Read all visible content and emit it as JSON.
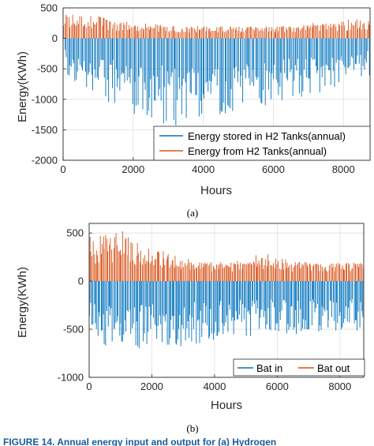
{
  "colors": {
    "stored": "#0072BD",
    "released": "#D95319",
    "axis": "#262626",
    "grid": "#dfdfdf"
  },
  "caption": "FIGURE 14. Annual energy input and output for (a) Hydrogen",
  "chart_data": [
    {
      "type": "bar",
      "sublabel": "(a)",
      "xlabel": "Hours",
      "ylabel": "Energy(KWh)",
      "xlim": [
        0,
        8760
      ],
      "ylim": [
        -2000,
        500
      ],
      "xticks": [
        0,
        2000,
        4000,
        6000,
        8000
      ],
      "yticks": [
        500,
        0,
        -500,
        -1000,
        -1500,
        -2000
      ],
      "grid": true,
      "legend_position": "bottom-right",
      "series": [
        {
          "name": "Energy stored in H2 Tanks(annual)",
          "color": "#0072BD",
          "hours": [
            0,
            500,
            1000,
            1500,
            2000,
            2500,
            3000,
            3500,
            4000,
            4500,
            5000,
            5500,
            6000,
            6500,
            7000,
            7500,
            8000,
            8500,
            8760
          ],
          "min_values": [
            -550,
            -800,
            -1000,
            -1150,
            -1250,
            -1350,
            -1450,
            -1420,
            -1350,
            -1250,
            -1200,
            -1150,
            -1100,
            -1000,
            -950,
            -900,
            -800,
            -700,
            -650
          ],
          "typical_values": [
            -300,
            -500,
            -600,
            -700,
            -800,
            -850,
            -900,
            -900,
            -850,
            -800,
            -750,
            -720,
            -700,
            -650,
            -600,
            -550,
            -500,
            -450,
            -400
          ]
        },
        {
          "name": "Energy from H2 Tanks(annual)",
          "color": "#D95319",
          "hours": [
            0,
            500,
            1000,
            1500,
            2000,
            2500,
            3000,
            3500,
            4000,
            4500,
            5000,
            5500,
            6000,
            6500,
            7000,
            7500,
            8000,
            8500,
            8760
          ],
          "max_values": [
            420,
            400,
            380,
            300,
            260,
            240,
            220,
            210,
            200,
            200,
            200,
            200,
            210,
            220,
            250,
            260,
            300,
            320,
            300
          ],
          "typical_values": [
            250,
            250,
            220,
            200,
            180,
            170,
            160,
            160,
            160,
            160,
            160,
            160,
            170,
            170,
            180,
            190,
            200,
            220,
            220
          ]
        }
      ]
    },
    {
      "type": "bar",
      "sublabel": "(b)",
      "xlabel": "Hours",
      "ylabel": "Energy(KWh)",
      "xlim": [
        0,
        8760
      ],
      "ylim": [
        -1000,
        600
      ],
      "xticks": [
        0,
        2000,
        4000,
        6000,
        8000
      ],
      "yticks": [
        500,
        0,
        -500,
        -1000
      ],
      "grid": true,
      "legend_position": "bottom-right",
      "series": [
        {
          "name": "Bat in",
          "color": "#0072BD",
          "hours": [
            0,
            500,
            1000,
            1500,
            2000,
            2500,
            3000,
            3500,
            4000,
            4500,
            5000,
            5500,
            6000,
            6500,
            7000,
            7500,
            8000,
            8500,
            8760
          ],
          "min_values": [
            -600,
            -680,
            -700,
            -720,
            -700,
            -680,
            -680,
            -650,
            -620,
            -600,
            -580,
            -580,
            -560,
            -560,
            -540,
            -540,
            -560,
            -560,
            -540
          ],
          "typical_values": [
            -400,
            -450,
            -480,
            -480,
            -460,
            -440,
            -430,
            -420,
            -400,
            -390,
            -380,
            -380,
            -380,
            -370,
            -360,
            -360,
            -370,
            -370,
            -360
          ]
        },
        {
          "name": "Bat out",
          "color": "#D95319",
          "hours": [
            0,
            500,
            1000,
            1500,
            2000,
            2500,
            3000,
            3500,
            4000,
            4500,
            5000,
            5500,
            6000,
            6500,
            7000,
            7500,
            8000,
            8500,
            8760
          ],
          "max_values": [
            500,
            480,
            550,
            420,
            380,
            320,
            250,
            200,
            200,
            200,
            220,
            300,
            260,
            200,
            200,
            200,
            200,
            200,
            200
          ],
          "typical_values": [
            300,
            320,
            320,
            280,
            250,
            220,
            180,
            160,
            160,
            160,
            170,
            200,
            180,
            160,
            160,
            160,
            160,
            160,
            160
          ]
        }
      ]
    }
  ]
}
